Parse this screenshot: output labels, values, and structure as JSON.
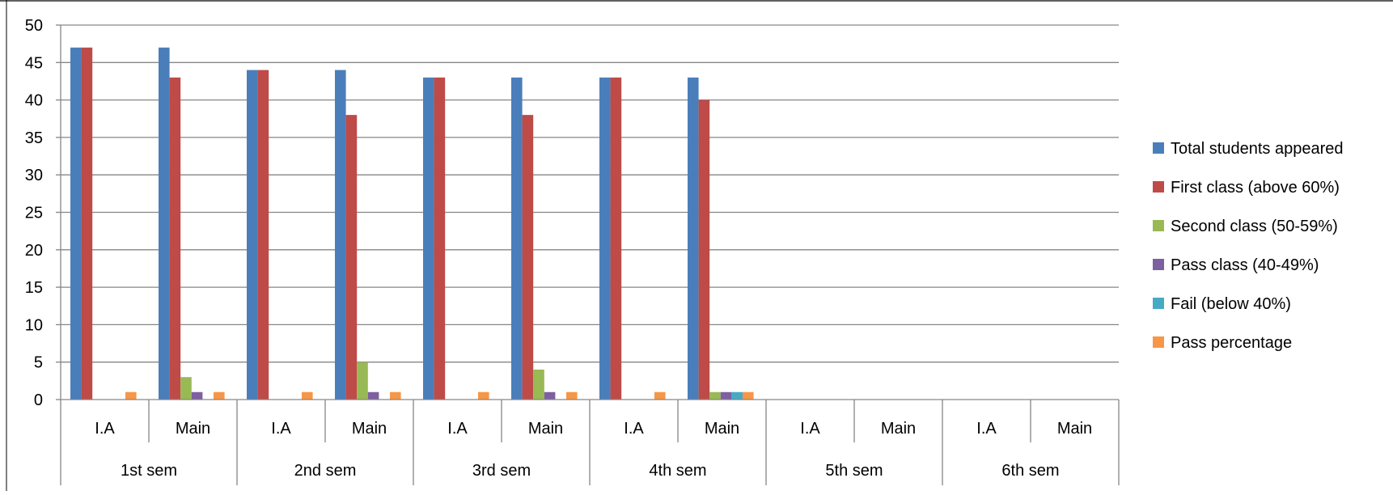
{
  "chart_data": {
    "type": "bar",
    "title": "",
    "xlabel": "",
    "ylabel": "",
    "ylim": [
      0,
      50
    ],
    "yticks": [
      "0",
      "5",
      "10",
      "15",
      "20",
      "25",
      "30",
      "35",
      "40",
      "45",
      "50"
    ],
    "grid": true,
    "legend_position": "right",
    "groups": [
      "1st sem",
      "2nd sem",
      "3rd sem",
      "4th sem",
      "5th sem",
      "6th sem"
    ],
    "categories": [
      "I.A",
      "Main",
      "I.A",
      "Main",
      "I.A",
      "Main",
      "I.A",
      "Main",
      "I.A",
      "Main",
      "I.A",
      "Main"
    ],
    "series": [
      {
        "name": "Total students appeared",
        "color": "#4A7EBB",
        "values": [
          47,
          47,
          44,
          44,
          43,
          43,
          43,
          43,
          null,
          null,
          null,
          null
        ]
      },
      {
        "name": "First class (above 60%)",
        "color": "#BE4B48",
        "values": [
          47,
          43,
          44,
          38,
          43,
          38,
          43,
          40,
          null,
          null,
          null,
          null
        ]
      },
      {
        "name": "Second class (50-59%)",
        "color": "#98B954",
        "values": [
          0,
          3,
          0,
          5,
          0,
          4,
          0,
          1,
          null,
          null,
          null,
          null
        ]
      },
      {
        "name": "Pass class (40-49%)",
        "color": "#7D60A0",
        "values": [
          0,
          1,
          0,
          1,
          0,
          1,
          0,
          1,
          null,
          null,
          null,
          null
        ]
      },
      {
        "name": "Fail (below 40%)",
        "color": "#46AAC5",
        "values": [
          0,
          0,
          0,
          0,
          0,
          0,
          0,
          1,
          null,
          null,
          null,
          null
        ]
      },
      {
        "name": "Pass percentage",
        "color": "#F79646",
        "values": [
          1,
          1,
          1,
          1,
          1,
          1,
          1,
          1,
          null,
          null,
          null,
          null
        ]
      }
    ]
  }
}
